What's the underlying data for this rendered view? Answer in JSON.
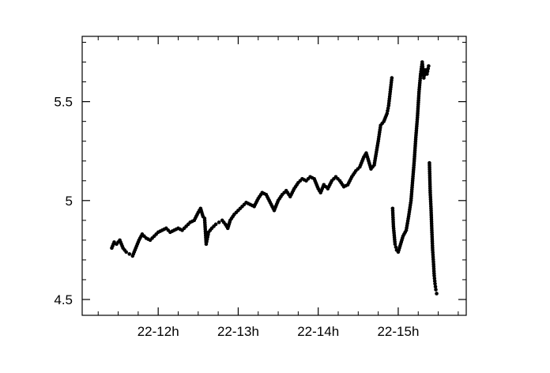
{
  "chart_data": {
    "type": "scatter",
    "title": "",
    "xlabel": "",
    "ylabel": "",
    "x_unit": "hours (day 22)",
    "xlim": [
      11.05,
      15.85
    ],
    "ylim": [
      4.42,
      5.83
    ],
    "xticks": [
      {
        "value": 12,
        "label": "22-12h"
      },
      {
        "value": 13,
        "label": "22-13h"
      },
      {
        "value": 14,
        "label": "22-14h"
      },
      {
        "value": 15,
        "label": "22-15h"
      }
    ],
    "yticks": [
      {
        "value": 4.5,
        "label": "4.5"
      },
      {
        "value": 5,
        "label": "5"
      },
      {
        "value": 5.5,
        "label": "5.5"
      }
    ],
    "grid": false,
    "marker_color": "#000000",
    "series": [
      {
        "points": [
          [
            11.42,
            4.76
          ],
          [
            11.45,
            4.79
          ],
          [
            11.48,
            4.78
          ],
          [
            11.52,
            4.8
          ],
          [
            11.56,
            4.76
          ],
          [
            11.6,
            4.74
          ],
          [
            11.64,
            4.73
          ],
          [
            11.68,
            4.72
          ],
          [
            11.72,
            4.76
          ],
          [
            11.76,
            4.8
          ],
          [
            11.8,
            4.83
          ],
          [
            11.85,
            4.81
          ],
          [
            11.9,
            4.8
          ],
          [
            11.95,
            4.82
          ],
          [
            12.0,
            4.84
          ],
          [
            12.05,
            4.85
          ],
          [
            12.1,
            4.86
          ],
          [
            12.15,
            4.84
          ],
          [
            12.2,
            4.85
          ],
          [
            12.25,
            4.86
          ],
          [
            12.3,
            4.85
          ],
          [
            12.35,
            4.87
          ],
          [
            12.4,
            4.89
          ],
          [
            12.45,
            4.9
          ],
          [
            12.5,
            4.94
          ],
          [
            12.53,
            4.96
          ],
          [
            12.56,
            4.92
          ],
          [
            12.58,
            4.91
          ],
          [
            12.6,
            4.78
          ],
          [
            12.63,
            4.84
          ],
          [
            12.67,
            4.86
          ],
          [
            12.72,
            4.88
          ],
          [
            12.76,
            4.89
          ],
          [
            12.8,
            4.9
          ],
          [
            12.84,
            4.88
          ],
          [
            12.87,
            4.86
          ],
          [
            12.9,
            4.9
          ],
          [
            12.95,
            4.93
          ],
          [
            13.0,
            4.95
          ],
          [
            13.05,
            4.97
          ],
          [
            13.1,
            4.99
          ],
          [
            13.15,
            4.98
          ],
          [
            13.2,
            4.97
          ],
          [
            13.25,
            5.01
          ],
          [
            13.3,
            5.04
          ],
          [
            13.35,
            5.03
          ],
          [
            13.4,
            4.99
          ],
          [
            13.45,
            4.95
          ],
          [
            13.5,
            5.0
          ],
          [
            13.55,
            5.03
          ],
          [
            13.6,
            5.05
          ],
          [
            13.65,
            5.02
          ],
          [
            13.7,
            5.06
          ],
          [
            13.75,
            5.09
          ],
          [
            13.8,
            5.11
          ],
          [
            13.85,
            5.1
          ],
          [
            13.9,
            5.12
          ],
          [
            13.95,
            5.11
          ],
          [
            14.0,
            5.06
          ],
          [
            14.03,
            5.04
          ],
          [
            14.07,
            5.08
          ],
          [
            14.12,
            5.06
          ],
          [
            14.17,
            5.1
          ],
          [
            14.22,
            5.12
          ],
          [
            14.27,
            5.1
          ],
          [
            14.32,
            5.07
          ],
          [
            14.37,
            5.08
          ],
          [
            14.42,
            5.12
          ],
          [
            14.47,
            5.15
          ],
          [
            14.52,
            5.17
          ],
          [
            14.57,
            5.22
          ],
          [
            14.6,
            5.24
          ],
          [
            14.63,
            5.2
          ],
          [
            14.66,
            5.16
          ],
          [
            14.7,
            5.18
          ],
          [
            14.75,
            5.3
          ],
          [
            14.78,
            5.38
          ],
          [
            14.82,
            5.4
          ],
          [
            14.86,
            5.44
          ],
          [
            14.88,
            5.48
          ],
          [
            14.9,
            5.55
          ],
          [
            14.92,
            5.62
          ],
          [
            14.93,
            4.96
          ],
          [
            14.94,
            4.87
          ],
          [
            14.96,
            4.78
          ],
          [
            14.98,
            4.75
          ],
          [
            15.0,
            4.74
          ],
          [
            15.03,
            4.78
          ],
          [
            15.06,
            4.82
          ],
          [
            15.1,
            4.85
          ],
          [
            15.13,
            4.92
          ],
          [
            15.16,
            5.0
          ],
          [
            15.18,
            5.1
          ],
          [
            15.2,
            5.2
          ],
          [
            15.22,
            5.32
          ],
          [
            15.24,
            5.42
          ],
          [
            15.26,
            5.55
          ],
          [
            15.28,
            5.64
          ],
          [
            15.3,
            5.7
          ],
          [
            15.32,
            5.62
          ],
          [
            15.34,
            5.66
          ],
          [
            15.36,
            5.64
          ],
          [
            15.38,
            5.68
          ],
          [
            15.39,
            5.19
          ],
          [
            15.4,
            5.04
          ],
          [
            15.41,
            4.96
          ],
          [
            15.42,
            4.85
          ],
          [
            15.43,
            4.75
          ],
          [
            15.44,
            4.69
          ],
          [
            15.45,
            4.62
          ],
          [
            15.46,
            4.58
          ],
          [
            15.47,
            4.55
          ],
          [
            15.48,
            4.53
          ]
        ]
      }
    ]
  }
}
